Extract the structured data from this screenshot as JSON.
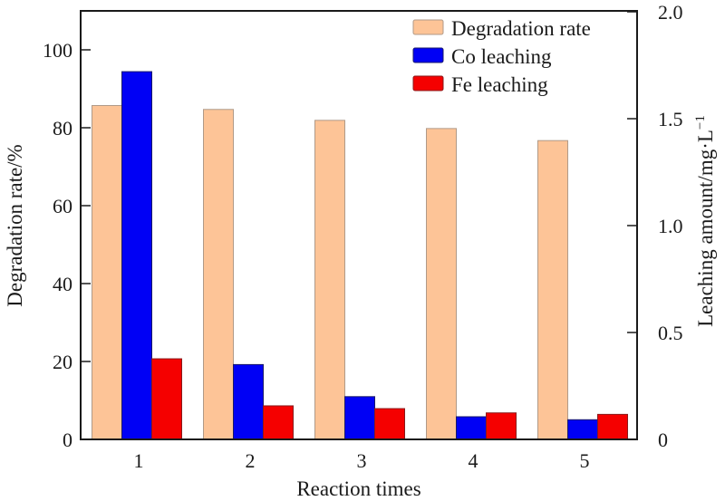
{
  "chart_data": {
    "type": "bar",
    "title": "",
    "categories": [
      "1",
      "2",
      "3",
      "4",
      "5"
    ],
    "xlabel": "Reaction times",
    "ylabel": "Degradation rate/%",
    "y2label": "Leaching amount/mg·L",
    "y2label_superscript": "−1",
    "ylim": [
      0,
      110
    ],
    "y2lim": [
      0,
      2.0
    ],
    "yticks": [
      0,
      20,
      40,
      60,
      80,
      100
    ],
    "ytick_labels": [
      "0",
      "20",
      "40",
      "60",
      "80",
      "100"
    ],
    "y2ticks": [
      0,
      0.5,
      1.0,
      1.5,
      2.0
    ],
    "y2tick_labels": [
      "0",
      "0.5",
      "1.0",
      "1.5",
      "2.0"
    ],
    "grid": false,
    "legend_position": "top-right",
    "series": [
      {
        "name": "Degradation rate",
        "axis": "left",
        "color": "#fdc497",
        "edge": "#b09a88",
        "values": [
          85.7,
          84.7,
          81.9,
          79.8,
          76.7
        ]
      },
      {
        "name": "Co leaching",
        "axis": "right",
        "color": "#0000f5",
        "edge": "#1a1a6a",
        "values": [
          1.72,
          0.35,
          0.2,
          0.106,
          0.092
        ]
      },
      {
        "name": "Fe leaching",
        "axis": "right",
        "color": "#f50000",
        "edge": "#8a1a1a",
        "values": [
          0.377,
          0.157,
          0.144,
          0.124,
          0.117
        ]
      }
    ]
  }
}
